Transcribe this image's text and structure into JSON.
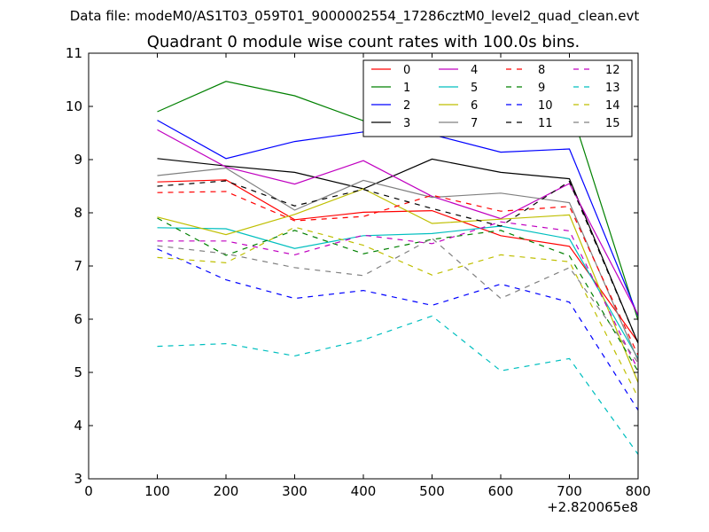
{
  "suptitle": "Data file: modeM0/AS1T03_059T01_9000002554_17286cztM0_level2_quad_clean.evt",
  "chart_data": {
    "type": "line",
    "title": "Quadrant 0 module wise count rates with 100.0s bins.",
    "xlabel": "",
    "ylabel": "",
    "xlim": [
      0,
      800
    ],
    "ylim": [
      3,
      11
    ],
    "x_offset_label": "+2.820065e8",
    "xticks": [
      0,
      100,
      200,
      300,
      400,
      500,
      600,
      700,
      800
    ],
    "xtick_labels": [
      "0",
      "100",
      "200",
      "300",
      "400",
      "500",
      "600",
      "700",
      "800"
    ],
    "yticks": [
      3,
      4,
      5,
      6,
      7,
      8,
      9,
      10,
      11
    ],
    "ytick_labels": [
      "3",
      "4",
      "5",
      "6",
      "7",
      "8",
      "9",
      "10",
      "11"
    ],
    "grid": false,
    "legend_position": "top-right",
    "x": [
      100,
      200,
      300,
      400,
      500,
      600,
      700,
      800
    ],
    "series": [
      {
        "name": "0",
        "color": "#ff0000",
        "dash": "solid",
        "values": [
          8.58,
          8.62,
          7.87,
          8.01,
          8.04,
          7.57,
          7.37,
          5.57
        ]
      },
      {
        "name": "1",
        "color": "#008000",
        "dash": "solid",
        "values": [
          9.9,
          10.47,
          10.2,
          9.73,
          9.65,
          10.15,
          10.03,
          5.98
        ]
      },
      {
        "name": "2",
        "color": "#0000ff",
        "dash": "solid",
        "values": [
          9.74,
          9.02,
          9.34,
          9.52,
          9.47,
          9.14,
          9.2,
          6.06
        ]
      },
      {
        "name": "3",
        "color": "#000000",
        "dash": "solid",
        "values": [
          9.02,
          8.88,
          8.76,
          8.45,
          9.01,
          8.76,
          8.64,
          5.55
        ]
      },
      {
        "name": "4",
        "color": "#c000c0",
        "dash": "solid",
        "values": [
          9.56,
          8.86,
          8.54,
          8.98,
          8.31,
          7.89,
          8.55,
          6.08
        ]
      },
      {
        "name": "5",
        "color": "#00bfbf",
        "dash": "solid",
        "values": [
          7.72,
          7.7,
          7.33,
          7.57,
          7.61,
          7.75,
          7.51,
          5.26
        ]
      },
      {
        "name": "6",
        "color": "#bfbf00",
        "dash": "solid",
        "values": [
          7.92,
          7.59,
          7.97,
          8.45,
          7.8,
          7.88,
          7.96,
          4.81
        ]
      },
      {
        "name": "7",
        "color": "#808080",
        "dash": "solid",
        "values": [
          8.7,
          8.84,
          8.05,
          8.61,
          8.29,
          8.37,
          8.19,
          5.22
        ]
      },
      {
        "name": "8",
        "color": "#ff0000",
        "dash": "dashed",
        "values": [
          8.38,
          8.4,
          7.85,
          7.93,
          8.33,
          8.03,
          8.12,
          5.32
        ]
      },
      {
        "name": "9",
        "color": "#008000",
        "dash": "dashed",
        "values": [
          7.9,
          7.2,
          7.67,
          7.23,
          7.5,
          7.67,
          7.19,
          5.02
        ]
      },
      {
        "name": "10",
        "color": "#0000ff",
        "dash": "dashed",
        "values": [
          7.32,
          6.74,
          6.39,
          6.54,
          6.26,
          6.66,
          6.32,
          4.29
        ]
      },
      {
        "name": "11",
        "color": "#000000",
        "dash": "dashed",
        "values": [
          8.5,
          8.6,
          8.13,
          8.44,
          8.08,
          7.75,
          8.59,
          5.55
        ]
      },
      {
        "name": "12",
        "color": "#c000c0",
        "dash": "dashed",
        "values": [
          7.47,
          7.47,
          7.21,
          7.58,
          7.42,
          7.83,
          7.66,
          5.05
        ]
      },
      {
        "name": "13",
        "color": "#00bfbf",
        "dash": "dashed",
        "values": [
          5.49,
          5.54,
          5.31,
          5.61,
          6.06,
          5.03,
          5.26,
          3.46
        ]
      },
      {
        "name": "14",
        "color": "#bfbf00",
        "dash": "dashed",
        "values": [
          7.16,
          7.06,
          7.73,
          7.39,
          6.83,
          7.21,
          7.08,
          4.53
        ]
      },
      {
        "name": "15",
        "color": "#808080",
        "dash": "dashed",
        "values": [
          7.38,
          7.23,
          6.97,
          6.82,
          7.52,
          6.39,
          6.97,
          5.18
        ]
      }
    ]
  }
}
